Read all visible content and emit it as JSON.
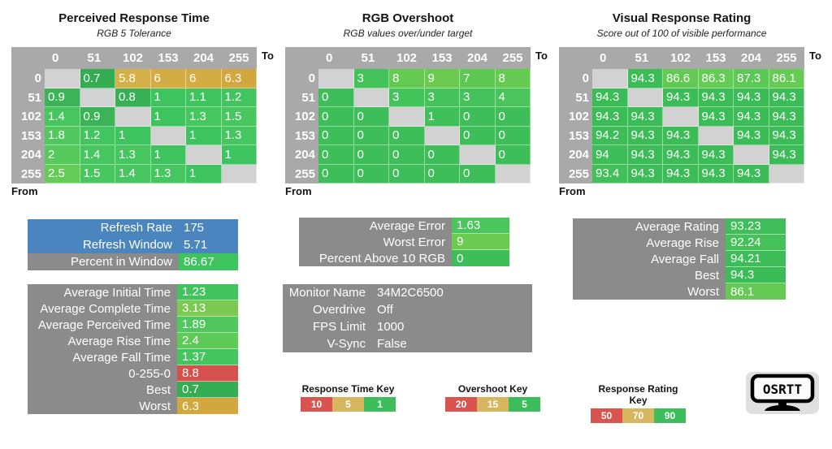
{
  "chart_data": [
    {
      "type": "heatmap",
      "title": "Perceived Response Time",
      "subtitle": "RGB 5 Tolerance",
      "to_label": "To",
      "from_label": "From",
      "columns": [
        "0",
        "51",
        "102",
        "153",
        "204",
        "255"
      ],
      "rows": [
        "0",
        "51",
        "102",
        "153",
        "204",
        "255"
      ],
      "values": [
        [
          null,
          0.7,
          5.8,
          6,
          6,
          6.3
        ],
        [
          0.9,
          null,
          0.8,
          1,
          1.1,
          1.2
        ],
        [
          1.4,
          0.9,
          null,
          1,
          1.3,
          1.5
        ],
        [
          1.8,
          1.2,
          1,
          null,
          1,
          1.3
        ],
        [
          2,
          1.4,
          1.3,
          1,
          null,
          1
        ],
        [
          2.5,
          1.5,
          1.4,
          1.3,
          1,
          null
        ]
      ],
      "color_stops": [
        [
          0.6,
          "#2fa850"
        ],
        [
          0.9,
          "#3bb457"
        ],
        [
          1,
          "#3ec45e"
        ],
        [
          1.5,
          "#49c75f"
        ],
        [
          2,
          "#55c95b"
        ],
        [
          2.5,
          "#63cb56"
        ],
        [
          3.2,
          "#7ccb4e"
        ],
        [
          5.8,
          "#d4b148"
        ],
        [
          6.3,
          "#d2a73e"
        ],
        [
          10,
          "#d9534f"
        ]
      ]
    },
    {
      "type": "heatmap",
      "title": "RGB Overshoot",
      "subtitle": "RGB values over/under target",
      "to_label": "To",
      "from_label": "From",
      "columns": [
        "0",
        "51",
        "102",
        "153",
        "204",
        "255"
      ],
      "rows": [
        "0",
        "51",
        "102",
        "153",
        "204",
        "255"
      ],
      "values": [
        [
          null,
          3,
          8,
          9,
          7,
          8
        ],
        [
          0,
          null,
          3,
          3,
          3,
          4
        ],
        [
          0,
          0,
          null,
          1,
          0,
          0
        ],
        [
          0,
          0,
          0,
          null,
          0,
          0
        ],
        [
          0,
          0,
          0,
          0,
          null,
          0
        ],
        [
          0,
          0,
          0,
          0,
          0,
          null
        ]
      ],
      "color_stops": [
        [
          0,
          "#3dbe58"
        ],
        [
          3,
          "#44c35b"
        ],
        [
          4,
          "#4ac55c"
        ],
        [
          7,
          "#5dc953"
        ],
        [
          9,
          "#6acb50"
        ],
        [
          15,
          "#d4b148"
        ],
        [
          20,
          "#d9534f"
        ]
      ]
    },
    {
      "type": "heatmap",
      "title": "Visual Response Rating",
      "subtitle": "Score out of 100 of visible performance",
      "to_label": "To",
      "from_label": "From",
      "columns": [
        "0",
        "51",
        "102",
        "153",
        "204",
        "255"
      ],
      "rows": [
        "0",
        "51",
        "102",
        "153",
        "204",
        "255"
      ],
      "values": [
        [
          null,
          94.3,
          86.6,
          86.3,
          87.3,
          86.1
        ],
        [
          94.3,
          null,
          94.3,
          94.3,
          94.3,
          94.3
        ],
        [
          94.3,
          94.3,
          null,
          94.3,
          94.3,
          94.3
        ],
        [
          94.2,
          94.3,
          94.3,
          null,
          94.3,
          94.3
        ],
        [
          94,
          94.3,
          94.3,
          94.3,
          null,
          94.3
        ],
        [
          93.4,
          94.3,
          94.3,
          94.3,
          94.3,
          null
        ]
      ],
      "color_stops": [
        [
          50,
          "#d9534f"
        ],
        [
          70,
          "#d4b148"
        ],
        [
          86.1,
          "#66cb53"
        ],
        [
          87.3,
          "#5cc956"
        ],
        [
          90,
          "#4fc558"
        ],
        [
          93.4,
          "#41bf59"
        ],
        [
          94.3,
          "#3cbc57"
        ],
        [
          100,
          "#2fa850"
        ]
      ]
    }
  ],
  "stat_blocks": [
    {
      "id": "refresh",
      "rows": [
        {
          "label": "Refresh Rate",
          "value": "175",
          "label_bg": "#4a85bf",
          "value_bg": "#4a85bf"
        },
        {
          "label": "Refresh Window",
          "value": "5.71",
          "label_bg": "#4a85bf",
          "value_bg": "#4a85bf"
        },
        {
          "label": "Percent in Window",
          "value": "86.67",
          "label_bg": "#8b8b8b",
          "value_bg": "#3ec45e"
        }
      ]
    },
    {
      "id": "times",
      "rows": [
        {
          "label": "Average Initial Time",
          "value": "1.23",
          "label_bg": "#8b8b8b",
          "value_bg": "#41c35d"
        },
        {
          "label": "Average Complete Time",
          "value": "3.13",
          "label_bg": "#8b8b8b",
          "value_bg": "#7bc951"
        },
        {
          "label": "Average Perceived Time",
          "value": "1.89",
          "label_bg": "#8b8b8b",
          "value_bg": "#4fc75c"
        },
        {
          "label": "Average Rise Time",
          "value": "2.4",
          "label_bg": "#8b8b8b",
          "value_bg": "#5fca58"
        },
        {
          "label": "Average Fall Time",
          "value": "1.37",
          "label_bg": "#8b8b8b",
          "value_bg": "#45c55d"
        },
        {
          "label": "0-255-0",
          "value": "8.8",
          "label_bg": "#8b8b8b",
          "value_bg": "#d6514e"
        },
        {
          "label": "Best",
          "value": "0.7",
          "label_bg": "#8b8b8b",
          "value_bg": "#35ae53"
        },
        {
          "label": "Worst",
          "value": "6.3",
          "label_bg": "#8b8b8b",
          "value_bg": "#d2a73e"
        }
      ]
    },
    {
      "id": "error",
      "rows": [
        {
          "label": "Average Error",
          "value": "1.63",
          "label_bg": "#8b8b8b",
          "value_bg": "#4ac65d"
        },
        {
          "label": "Worst Error",
          "value": "9",
          "label_bg": "#8b8b8b",
          "value_bg": "#6acb50"
        },
        {
          "label": "Percent Above 10 RGB",
          "value": "0",
          "label_bg": "#8b8b8b",
          "value_bg": "#3dbe58"
        }
      ]
    },
    {
      "id": "monitor",
      "rows": [
        {
          "label": "Monitor Name",
          "value": "34M2C6500",
          "label_bg": "#8b8b8b",
          "value_bg": "#8b8b8b"
        },
        {
          "label": "Overdrive",
          "value": "Off",
          "label_bg": "#8b8b8b",
          "value_bg": "#8b8b8b"
        },
        {
          "label": "FPS Limit",
          "value": "1000",
          "label_bg": "#8b8b8b",
          "value_bg": "#8b8b8b"
        },
        {
          "label": "V-Sync",
          "value": "False",
          "label_bg": "#8b8b8b",
          "value_bg": "#8b8b8b"
        }
      ]
    },
    {
      "id": "rating",
      "rows": [
        {
          "label": "Average Rating",
          "value": "93.23",
          "label_bg": "#8b8b8b",
          "value_bg": "#40be59"
        },
        {
          "label": "Average Rise",
          "value": "92.24",
          "label_bg": "#8b8b8b",
          "value_bg": "#45c15a"
        },
        {
          "label": "Average Fall",
          "value": "94.21",
          "label_bg": "#8b8b8b",
          "value_bg": "#3dbd58"
        },
        {
          "label": "Best",
          "value": "94.3",
          "label_bg": "#8b8b8b",
          "value_bg": "#3cbc57"
        },
        {
          "label": "Worst",
          "value": "86.1",
          "label_bg": "#8b8b8b",
          "value_bg": "#64ca54"
        }
      ]
    }
  ],
  "legends": [
    {
      "title": "Response Time Key",
      "cells": [
        {
          "label": "10",
          "color": "#d9534f"
        },
        {
          "label": "5",
          "color": "#d6b75f"
        },
        {
          "label": "1",
          "color": "#3ebd5c"
        }
      ]
    },
    {
      "title": "Overshoot Key",
      "cells": [
        {
          "label": "20",
          "color": "#d9534f"
        },
        {
          "label": "15",
          "color": "#d6b75f"
        },
        {
          "label": "5",
          "color": "#3ebd5c"
        }
      ]
    },
    {
      "title": "Response Rating Key",
      "cells": [
        {
          "label": "50",
          "color": "#d9534f"
        },
        {
          "label": "70",
          "color": "#d6b75f"
        },
        {
          "label": "90",
          "color": "#3ebd5c"
        }
      ]
    }
  ],
  "logo": {
    "text": "OSRTT"
  }
}
